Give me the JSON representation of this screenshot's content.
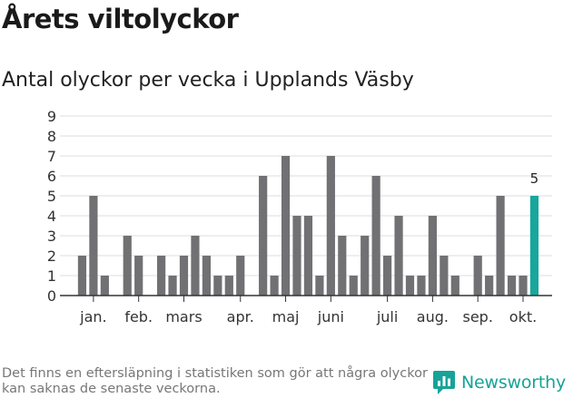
{
  "title": "Årets viltolyckor",
  "subtitle": "Antal olyckor per vecka i Upplands Väsby",
  "footnote": "Det finns en eftersläpning i statistiken som gör att några olyckor kan saknas de senaste veckorna.",
  "brand": {
    "name": "Newsworthy"
  },
  "colors": {
    "bar": "#717073",
    "highlight": "#18a79b",
    "grid": "#dddddd",
    "axis": "#333333",
    "brand": "#17a398"
  },
  "chart_data": {
    "type": "bar",
    "title": "Antal olyckor per vecka i Upplands Väsby",
    "xlabel": "",
    "ylabel": "",
    "ylim": [
      0,
      9
    ],
    "yticks": [
      0,
      1,
      2,
      3,
      4,
      5,
      6,
      7,
      8,
      9
    ],
    "grid": true,
    "values": [
      0,
      2,
      5,
      1,
      0,
      3,
      2,
      0,
      2,
      1,
      2,
      3,
      2,
      1,
      1,
      2,
      0,
      6,
      1,
      7,
      4,
      4,
      1,
      7,
      3,
      1,
      3,
      6,
      2,
      4,
      1,
      1,
      4,
      2,
      1,
      0,
      2,
      1,
      5,
      1,
      1,
      5
    ],
    "highlight_index": 41,
    "highlight_label": "5",
    "month_labels": [
      {
        "label": "jan.",
        "bar_index": 2
      },
      {
        "label": "feb.",
        "bar_index": 6
      },
      {
        "label": "mars",
        "bar_index": 10
      },
      {
        "label": "apr.",
        "bar_index": 15
      },
      {
        "label": "maj",
        "bar_index": 19
      },
      {
        "label": "juni",
        "bar_index": 23
      },
      {
        "label": "juli",
        "bar_index": 28
      },
      {
        "label": "aug.",
        "bar_index": 32
      },
      {
        "label": "sep.",
        "bar_index": 36
      },
      {
        "label": "okt.",
        "bar_index": 40
      }
    ]
  }
}
